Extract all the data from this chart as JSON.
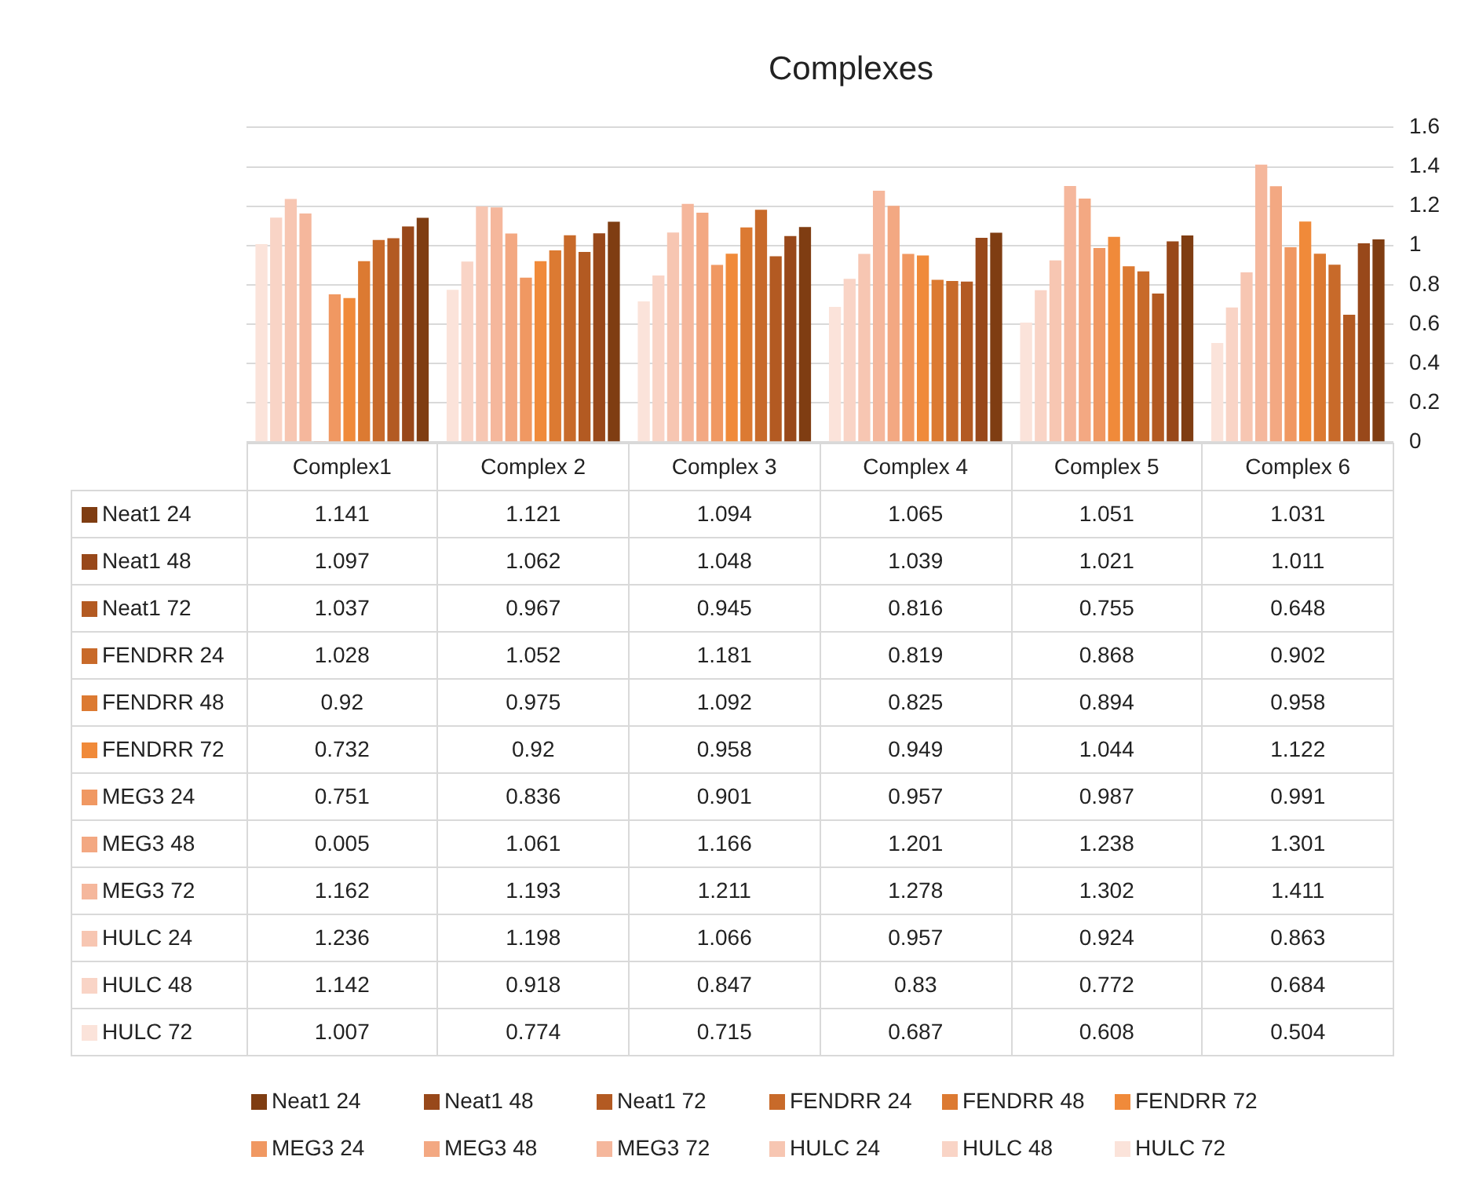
{
  "chart_data": {
    "type": "bar",
    "title": "Complexes",
    "categories": [
      "Complex1",
      "Complex 2",
      "Complex 3",
      "Complex 4",
      "Complex 5",
      "Complex 6"
    ],
    "series": [
      {
        "name": "Neat1 24",
        "color": "#7f3d12",
        "values": [
          1.141,
          1.121,
          1.094,
          1.065,
          1.051,
          1.031
        ]
      },
      {
        "name": "Neat1 48",
        "color": "#98481a",
        "values": [
          1.097,
          1.062,
          1.048,
          1.039,
          1.021,
          1.011
        ]
      },
      {
        "name": "Neat1 72",
        "color": "#b35a22",
        "values": [
          1.037,
          0.967,
          0.945,
          0.816,
          0.755,
          0.648
        ]
      },
      {
        "name": "FENDRR 24",
        "color": "#c86a2a",
        "values": [
          1.028,
          1.052,
          1.181,
          0.819,
          0.868,
          0.902
        ]
      },
      {
        "name": "FENDRR 48",
        "color": "#dc7a32",
        "values": [
          0.92,
          0.975,
          1.092,
          0.825,
          0.894,
          0.958
        ]
      },
      {
        "name": "FENDRR 72",
        "color": "#f08a3a",
        "values": [
          0.732,
          0.92,
          0.958,
          0.949,
          1.044,
          1.122
        ]
      },
      {
        "name": "MEG3 24",
        "color": "#f09862",
        "values": [
          0.751,
          0.836,
          0.901,
          0.957,
          0.987,
          0.991
        ]
      },
      {
        "name": "MEG3 48",
        "color": "#f3a882",
        "values": [
          0.005,
          1.061,
          1.166,
          1.201,
          1.238,
          1.301
        ]
      },
      {
        "name": "MEG3 72",
        "color": "#f5b79c",
        "values": [
          1.162,
          1.193,
          1.211,
          1.278,
          1.302,
          1.411
        ]
      },
      {
        "name": "HULC 24",
        "color": "#f7c6b2",
        "values": [
          1.236,
          1.198,
          1.066,
          0.957,
          0.924,
          0.863
        ]
      },
      {
        "name": "HULC 48",
        "color": "#f9d4c6",
        "values": [
          1.142,
          0.918,
          0.847,
          0.83,
          0.772,
          0.684
        ]
      },
      {
        "name": "HULC 72",
        "color": "#fbe3da",
        "values": [
          1.007,
          0.774,
          0.715,
          0.687,
          0.608,
          0.504
        ]
      }
    ],
    "ylim": [
      0,
      1.6
    ],
    "yticks": [
      0,
      0.2,
      0.4,
      0.6,
      0.8,
      1,
      1.2,
      1.4,
      1.6
    ],
    "grid": "y",
    "legend": "bottom",
    "data_labels": true
  }
}
